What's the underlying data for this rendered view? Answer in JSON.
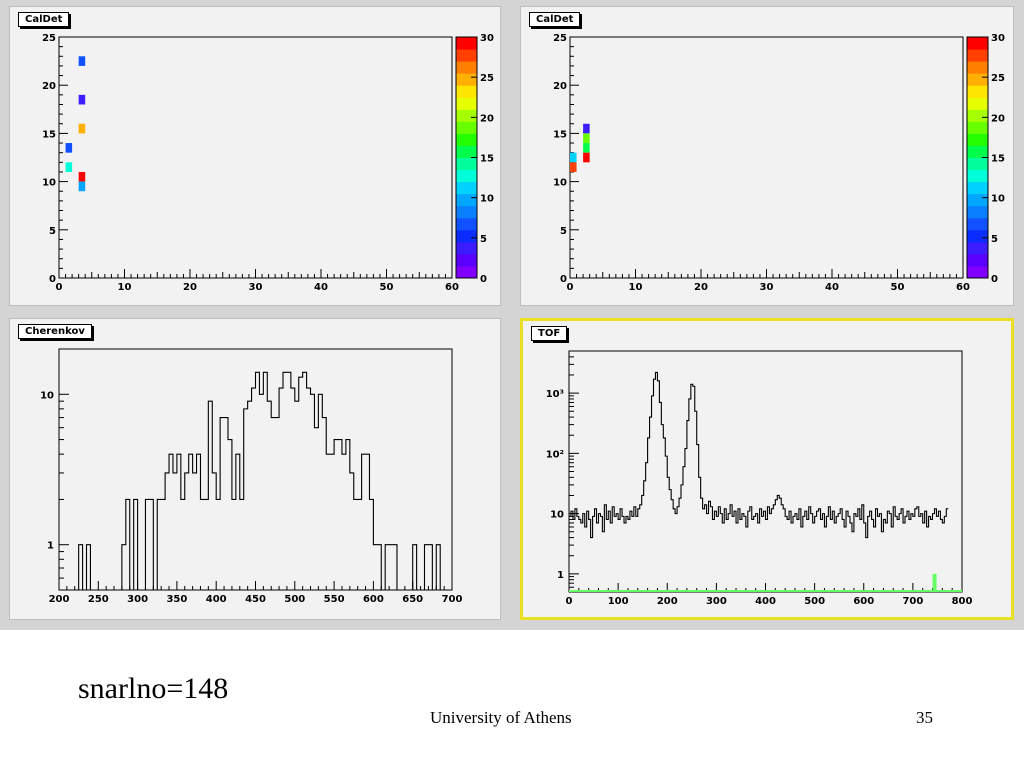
{
  "pads": {
    "caldet1_title": "CalDet",
    "caldet2_title": "CalDet",
    "cherenkov_title": "Cherenkov",
    "tof_title": "TOF"
  },
  "footer": {
    "label": "snarlno=148",
    "institution": "University of Athens",
    "page": "35"
  },
  "colors": {
    "palette": [
      "#7f00ff",
      "#5a00ff",
      "#3c1dff",
      "#0a2cff",
      "#1052ff",
      "#0a7fff",
      "#00a6ff",
      "#00d2ff",
      "#00ffd9",
      "#00ff9c",
      "#00ff4c",
      "#23ff00",
      "#66ff00",
      "#a6ff00",
      "#e6ff00",
      "#ffe600",
      "#ffb000",
      "#ff8000",
      "#ff4000",
      "#ff0000"
    ],
    "tof_line": "#000000",
    "tof_green": "#66ff66"
  },
  "chart_data": [
    {
      "type": "heatmap",
      "title": "CalDet",
      "xlim": [
        0,
        60
      ],
      "ylim": [
        0,
        25
      ],
      "zlim": [
        0,
        30
      ],
      "xticks": [
        "0",
        "10",
        "20",
        "30",
        "40",
        "50",
        "60"
      ],
      "yticks": [
        "0",
        "5",
        "10",
        "15",
        "20",
        "25"
      ],
      "zticks": [
        "0",
        "5",
        "10",
        "15",
        "20",
        "25",
        "30"
      ],
      "cells": [
        {
          "x": 3,
          "y": 22,
          "z": 6
        },
        {
          "x": 3,
          "y": 18,
          "z": 4
        },
        {
          "x": 3,
          "y": 15,
          "z": 24
        },
        {
          "x": 1,
          "y": 13,
          "z": 7
        },
        {
          "x": 1,
          "y": 11,
          "z": 12
        },
        {
          "x": 3,
          "y": 10,
          "z": 29
        },
        {
          "x": 3,
          "y": 9,
          "z": 9
        }
      ]
    },
    {
      "type": "heatmap",
      "title": "CalDet",
      "xlim": [
        0,
        60
      ],
      "ylim": [
        0,
        25
      ],
      "zlim": [
        0,
        30
      ],
      "xticks": [
        "0",
        "10",
        "20",
        "30",
        "40",
        "50",
        "60"
      ],
      "yticks": [
        "0",
        "5",
        "10",
        "15",
        "20",
        "25"
      ],
      "zticks": [
        "0",
        "5",
        "10",
        "15",
        "20",
        "25",
        "30"
      ],
      "cells": [
        {
          "x": 2,
          "y": 15,
          "z": 3
        },
        {
          "x": 2,
          "y": 14,
          "z": 19
        },
        {
          "x": 2,
          "y": 13,
          "z": 16
        },
        {
          "x": 0,
          "y": 12,
          "z": 11
        },
        {
          "x": 2,
          "y": 12,
          "z": 29
        },
        {
          "x": 0,
          "y": 11,
          "z": 27
        }
      ]
    },
    {
      "type": "line",
      "title": "Cherenkov",
      "xlim": [
        200,
        700
      ],
      "ylim": [
        0.5,
        20
      ],
      "log_y": true,
      "bin_width": 5,
      "xticks": [
        "200",
        "250",
        "300",
        "350",
        "400",
        "450",
        "500",
        "550",
        "600",
        "650",
        "700"
      ],
      "yticks": [
        "1",
        "10"
      ],
      "series": [
        {
          "x0": 200,
          "values": [
            0,
            0,
            0,
            0,
            0,
            1,
            0,
            1,
            0,
            0,
            0,
            0,
            0,
            0,
            0,
            0,
            1,
            2,
            0,
            2,
            0,
            0,
            2,
            2,
            0,
            2,
            2,
            3,
            4,
            3,
            4,
            2,
            3,
            4,
            3,
            4,
            2,
            2,
            9,
            3,
            2,
            7,
            7,
            5,
            2,
            4,
            2,
            8,
            9,
            11,
            14,
            10,
            14,
            9,
            7,
            7,
            11,
            14,
            14,
            11,
            9,
            13,
            14,
            11,
            10,
            6,
            10,
            7,
            4,
            4,
            5,
            5,
            4,
            5,
            3,
            2,
            2,
            4,
            4,
            2,
            1,
            1,
            0,
            1,
            1,
            1,
            0,
            0,
            0,
            0,
            1,
            0,
            0,
            1,
            1,
            0,
            1,
            0,
            0,
            0
          ]
        }
      ]
    },
    {
      "type": "line",
      "title": "TOF",
      "xlim": [
        0,
        800
      ],
      "ylim": [
        0.5,
        5000
      ],
      "log_y": true,
      "bin_width": 4,
      "xticks": [
        "0",
        "100",
        "200",
        "300",
        "400",
        "500",
        "600",
        "700",
        "800"
      ],
      "yticks": [
        "1",
        "10",
        "10²",
        "10³"
      ],
      "series": [
        {
          "name": "",
          "color": "#000000",
          "x0": 0,
          "values": [
            9,
            11,
            8,
            12,
            9,
            8,
            7,
            10,
            6,
            11,
            8,
            4,
            9,
            12,
            7,
            10,
            9,
            5,
            14,
            8,
            11,
            7,
            13,
            9,
            10,
            8,
            12,
            9,
            7,
            9,
            8,
            11,
            9,
            13,
            9,
            12,
            14,
            20,
            35,
            70,
            180,
            400,
            900,
            1700,
            2200,
            1600,
            700,
            300,
            180,
            90,
            40,
            25,
            17,
            12,
            10,
            13,
            18,
            30,
            60,
            120,
            350,
            800,
            1400,
            1300,
            500,
            140,
            40,
            18,
            12,
            14,
            10,
            16,
            13,
            8,
            11,
            9,
            13,
            10,
            7,
            12,
            8,
            10,
            14,
            9,
            11,
            7,
            12,
            8,
            10,
            9,
            6,
            11,
            13,
            8,
            9,
            10,
            7,
            12,
            9,
            11,
            8,
            13,
            10,
            12,
            14,
            17,
            20,
            18,
            14,
            12,
            9,
            8,
            11,
            7,
            9,
            10,
            8,
            12,
            6,
            9,
            11,
            8,
            13,
            10,
            7,
            9,
            11,
            12,
            8,
            10,
            6,
            9,
            13,
            8,
            11,
            7,
            9,
            10,
            12,
            8,
            6,
            11,
            9,
            7,
            5,
            10,
            9,
            12,
            8,
            14,
            7,
            4,
            9,
            11,
            8,
            6,
            12,
            9,
            10,
            5,
            8,
            7,
            11,
            10,
            6,
            13,
            9,
            8,
            10,
            12,
            7,
            9,
            11,
            8,
            10,
            9,
            12,
            13,
            9,
            10,
            7,
            11,
            6,
            9,
            8,
            10,
            12,
            9,
            11,
            8,
            7,
            9,
            12
          ]
        },
        {
          "name": "",
          "color": "#66ff66",
          "x0": 0,
          "values": [
            0.5
          ]
        }
      ],
      "green_spike": {
        "x": 740,
        "y": 1
      }
    }
  ]
}
